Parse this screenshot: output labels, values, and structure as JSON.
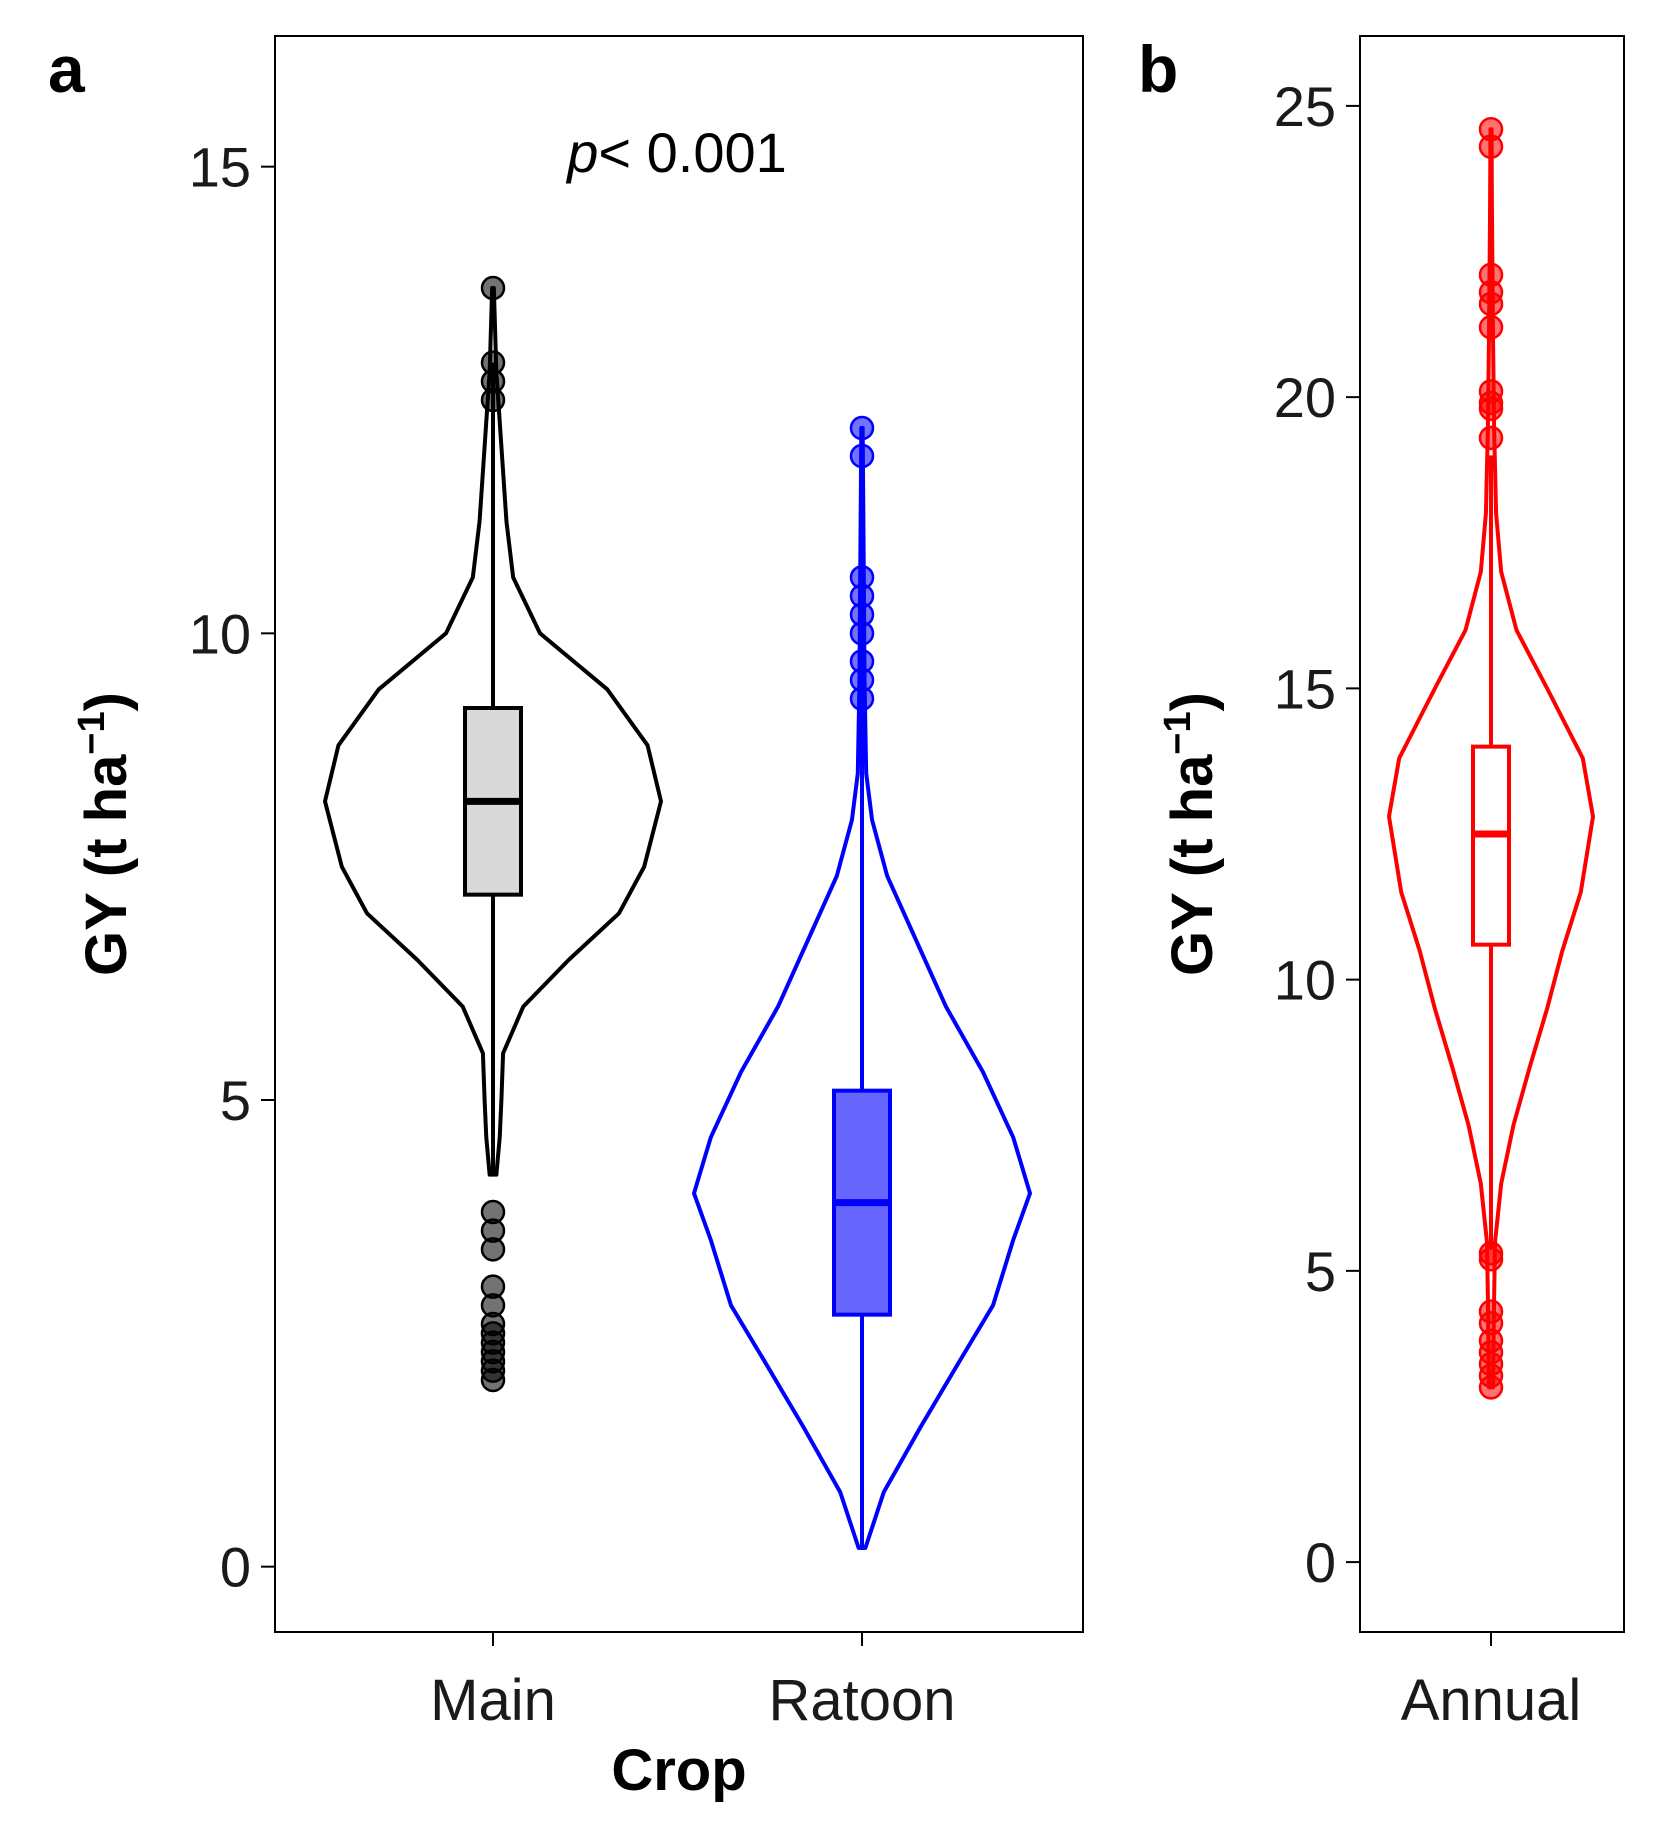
{
  "chart_data": [
    {
      "panel": "a",
      "type": "violin",
      "xlabel": "Crop",
      "ylabel": "GY (t ha",
      "ylabel_sup": "−1",
      "ylabel_close": ")",
      "ylim": [
        -0.7,
        16.4
      ],
      "yticks": [
        0,
        5,
        10,
        15
      ],
      "annotation": {
        "italic": "p",
        "rest": "< 0.001"
      },
      "series": [
        {
          "name": "Main",
          "color": "#000000",
          "box_fill": "#d9d9d9",
          "box_fill_opacity": 1,
          "box": {
            "q1": 7.2,
            "median": 8.2,
            "q3": 9.2
          },
          "whisker": {
            "low": 4.2,
            "high": 12.9
          },
          "violin_range": [
            4.2,
            13.7
          ],
          "outliers": [
            13.7,
            12.9,
            12.7,
            12.5,
            3.8,
            3.6,
            3.4,
            3.0,
            2.8,
            2.6,
            2.5,
            2.4,
            2.3,
            2.2,
            2.1,
            2.0
          ],
          "density": [
            [
              4.2,
              0.02
            ],
            [
              4.6,
              0.04
            ],
            [
              5.0,
              0.05
            ],
            [
              5.5,
              0.06
            ],
            [
              6.0,
              0.18
            ],
            [
              6.5,
              0.45
            ],
            [
              7.0,
              0.75
            ],
            [
              7.5,
              0.9
            ],
            [
              8.2,
              1.0
            ],
            [
              8.8,
              0.92
            ],
            [
              9.4,
              0.68
            ],
            [
              10.0,
              0.28
            ],
            [
              10.6,
              0.12
            ],
            [
              11.2,
              0.08
            ],
            [
              12.0,
              0.05
            ],
            [
              12.8,
              0.02
            ],
            [
              13.7,
              0.005
            ]
          ]
        },
        {
          "name": "Ratoon",
          "color": "#0000ff",
          "box_fill": "#6666ff",
          "box_fill_opacity": 1,
          "box": {
            "q1": 2.7,
            "median": 3.9,
            "q3": 5.1
          },
          "whisker": {
            "low": 0.2,
            "high": 12.2
          },
          "violin_range": [
            0.2,
            12.2
          ],
          "outliers": [
            12.2,
            11.9,
            10.6,
            10.4,
            10.2,
            10.0,
            9.7,
            9.5,
            9.3
          ],
          "density": [
            [
              0.2,
              0.02
            ],
            [
              0.8,
              0.13
            ],
            [
              1.5,
              0.35
            ],
            [
              2.2,
              0.58
            ],
            [
              2.8,
              0.78
            ],
            [
              3.5,
              0.9
            ],
            [
              4.0,
              1.0
            ],
            [
              4.6,
              0.9
            ],
            [
              5.3,
              0.72
            ],
            [
              6.0,
              0.5
            ],
            [
              6.8,
              0.3
            ],
            [
              7.4,
              0.15
            ],
            [
              8.0,
              0.06
            ],
            [
              8.5,
              0.025
            ],
            [
              9.5,
              0.015
            ],
            [
              10.8,
              0.01
            ],
            [
              12.2,
              0.004
            ]
          ]
        }
      ]
    },
    {
      "panel": "b",
      "type": "violin",
      "xlabel": "",
      "ylabel": "GY (t ha",
      "ylabel_sup": "−1",
      "ylabel_close": ")",
      "ylim": [
        -1.2,
        26.2
      ],
      "yticks": [
        0,
        5,
        10,
        15,
        20,
        25
      ],
      "series": [
        {
          "name": "Annual",
          "color": "#ff0000",
          "box_fill": "#ffffff",
          "box_fill_opacity": 1,
          "box": {
            "q1": 10.6,
            "median": 12.5,
            "q3": 14.0
          },
          "whisker": {
            "low": 5.4,
            "high": 19.0
          },
          "violin_range": [
            3.0,
            24.6
          ],
          "outliers": [
            24.6,
            24.3,
            22.1,
            21.8,
            21.6,
            21.2,
            20.1,
            19.9,
            19.8,
            19.3,
            5.3,
            5.2,
            4.3,
            4.1,
            3.8,
            3.6,
            3.4,
            3.2,
            3.0
          ],
          "density": [
            [
              3.0,
              0.02
            ],
            [
              4.5,
              0.03
            ],
            [
              5.5,
              0.04
            ],
            [
              6.5,
              0.1
            ],
            [
              7.5,
              0.22
            ],
            [
              8.5,
              0.38
            ],
            [
              9.5,
              0.55
            ],
            [
              10.5,
              0.7
            ],
            [
              11.5,
              0.88
            ],
            [
              12.8,
              1.0
            ],
            [
              13.8,
              0.9
            ],
            [
              15.0,
              0.55
            ],
            [
              16.0,
              0.25
            ],
            [
              17.0,
              0.1
            ],
            [
              18.0,
              0.05
            ],
            [
              19.5,
              0.03
            ],
            [
              21.0,
              0.02
            ],
            [
              23.0,
              0.01
            ],
            [
              24.6,
              0.005
            ]
          ]
        }
      ]
    }
  ]
}
